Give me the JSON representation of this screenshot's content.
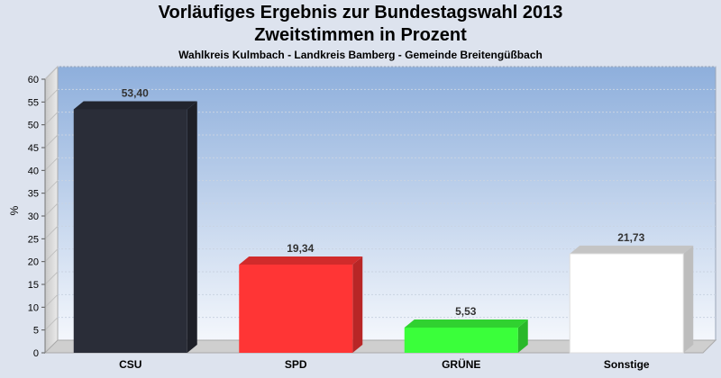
{
  "chart_data": {
    "type": "bar",
    "title": "Vorläufiges Ergebnis zur Bundestagswahl 2013",
    "subtitle": "Zweitstimmen in Prozent",
    "subtitle2": "Wahlkreis Kulmbach - Landkreis Bamberg - Gemeinde Breitengüßbach",
    "ylabel": "%",
    "ylim": [
      0,
      60
    ],
    "yticks": [
      0,
      5,
      10,
      15,
      20,
      25,
      30,
      35,
      40,
      45,
      50,
      55,
      60
    ],
    "categories": [
      "CSU",
      "SPD",
      "GRÜNE",
      "Sonstige"
    ],
    "values": [
      53.4,
      19.34,
      5.53,
      21.73
    ],
    "value_labels": [
      "53,40",
      "19,34",
      "5,53",
      "21,73"
    ],
    "colors": [
      "#2a2d38",
      "#ff3535",
      "#3aff3a",
      "#ffffff"
    ],
    "legend": false,
    "grid": true
  }
}
